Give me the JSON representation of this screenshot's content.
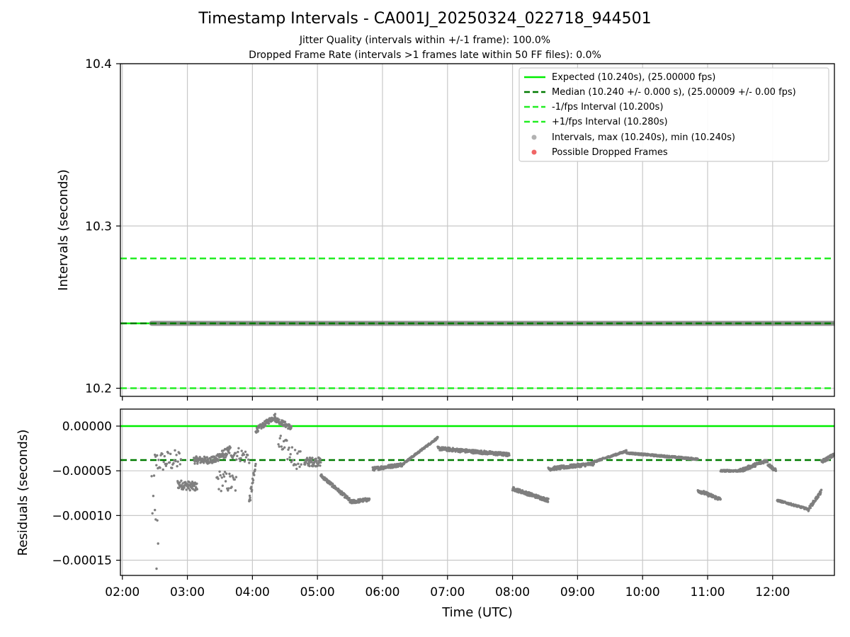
{
  "title": "Timestamp Intervals - CA001J_20250324_022718_944501",
  "subtitle1": "Jitter Quality (intervals within +/-1 frame): 100.0%",
  "subtitle2": "Dropped Frame Rate (intervals >1 frames late within 50 FF files): 0.0%",
  "colors": {
    "expected": "#00ee00",
    "median": "#007a00",
    "bounds": "#22ee22",
    "points": "#7f7f7f",
    "dropped": "#ee5555",
    "grid": "#c8c8c8"
  },
  "legend": [
    {
      "label": "Expected (10.240s), (25.00000 fps)",
      "style": "solid"
    },
    {
      "label": "Median (10.240 +/- 0.000 s), (25.00009 +/- 0.00 fps)",
      "style": "dashed-dark"
    },
    {
      "label": "-1/fps Interval (10.200s)",
      "style": "dashed-light"
    },
    {
      "label": "+1/fps Interval (10.280s)",
      "style": "dashed-light"
    },
    {
      "label": "Intervals, max (10.240s), min (10.240s)",
      "style": "dot-gray"
    },
    {
      "label": "Possible Dropped Frames",
      "style": "dot-red"
    }
  ],
  "chart_data": [
    {
      "type": "line",
      "ylabel": "Intervals (seconds)",
      "ylim": [
        10.195,
        10.4
      ],
      "yticks": [
        10.2,
        10.3,
        10.4
      ],
      "ytick_labels": [
        "10.2",
        "10.3",
        "10.4"
      ],
      "xlim_hours": [
        1.97,
        12.95
      ],
      "grid": true,
      "legend_position": "top-right",
      "expected": 10.24,
      "median": 10.24,
      "lower_bound": 10.2,
      "upper_bound": 10.28,
      "intervals_start_hours": 2.45,
      "intervals_end_hours": 12.95,
      "intervals_value": 10.24
    },
    {
      "type": "scatter",
      "ylabel": "Residuals (seconds)",
      "xlabel": "Time (UTC)",
      "ylim": [
        -0.000167,
        1.9e-05
      ],
      "yticks": [
        0.0,
        -5e-05,
        -0.0001,
        -0.00015
      ],
      "ytick_labels": [
        "0.00000",
        "−0.00005",
        "−0.00010",
        "−0.00015"
      ],
      "xticks": [
        2,
        3,
        4,
        5,
        6,
        7,
        8,
        9,
        10,
        11,
        12
      ],
      "xtick_labels": [
        "02:00",
        "03:00",
        "04:00",
        "05:00",
        "06:00",
        "07:00",
        "08:00",
        "09:00",
        "10:00",
        "11:00",
        "12:00"
      ],
      "xlim_hours": [
        1.97,
        12.95
      ],
      "grid": true,
      "expected_line": 0.0,
      "median_line": -3.8e-05,
      "segments": [
        {
          "x0": 2.45,
          "x1": 2.55,
          "y0": -7e-05,
          "y1": -0.00015,
          "noise": 4.5e-05
        },
        {
          "x0": 2.5,
          "x1": 2.9,
          "y0": -4e-05,
          "y1": -3.8e-05,
          "noise": 1.2e-05
        },
        {
          "x0": 2.85,
          "x1": 3.15,
          "y0": -6.5e-05,
          "y1": -6.8e-05,
          "noise": 5e-06
        },
        {
          "x0": 3.1,
          "x1": 3.45,
          "y0": -3.8e-05,
          "y1": -3.8e-05,
          "noise": 4e-06
        },
        {
          "x0": 3.45,
          "x1": 3.65,
          "y0": -3.5e-05,
          "y1": -2.8e-05,
          "noise": 5e-06
        },
        {
          "x0": 3.45,
          "x1": 3.75,
          "y0": -6e-05,
          "y1": -6.5e-05,
          "noise": 1.2e-05
        },
        {
          "x0": 3.65,
          "x1": 3.95,
          "y0": -2.8e-05,
          "y1": -3.5e-05,
          "noise": 8e-06
        },
        {
          "x0": 3.95,
          "x1": 4.05,
          "y0": -8.5e-05,
          "y1": -4.5e-05,
          "noise": 6e-06
        },
        {
          "x0": 4.05,
          "x1": 4.35,
          "y0": -5e-06,
          "y1": 1.1e-05,
          "noise": 3e-06
        },
        {
          "x0": 4.35,
          "x1": 4.6,
          "y0": 8e-06,
          "y1": -2e-06,
          "noise": 3e-06
        },
        {
          "x0": 4.4,
          "x1": 4.75,
          "y0": -2e-05,
          "y1": -4e-05,
          "noise": 1.2e-05
        },
        {
          "x0": 4.8,
          "x1": 5.05,
          "y0": -4e-05,
          "y1": -4e-05,
          "noise": 5e-06
        },
        {
          "x0": 5.05,
          "x1": 5.5,
          "y0": -5.5e-05,
          "y1": -8.3e-05,
          "noise": 2e-06
        },
        {
          "x0": 5.5,
          "x1": 5.8,
          "y0": -8.5e-05,
          "y1": -8.2e-05,
          "noise": 2e-06
        },
        {
          "x0": 5.85,
          "x1": 6.3,
          "y0": -4.8e-05,
          "y1": -4.3e-05,
          "noise": 2e-06
        },
        {
          "x0": 6.3,
          "x1": 6.85,
          "y0": -4.3e-05,
          "y1": -1.3e-05,
          "noise": 1e-06
        },
        {
          "x0": 6.85,
          "x1": 7.95,
          "y0": -2.5e-05,
          "y1": -3.2e-05,
          "noise": 2e-06
        },
        {
          "x0": 8.0,
          "x1": 8.55,
          "y0": -7e-05,
          "y1": -8.3e-05,
          "noise": 2e-06
        },
        {
          "x0": 8.55,
          "x1": 9.25,
          "y0": -4.8e-05,
          "y1": -4.2e-05,
          "noise": 2e-06
        },
        {
          "x0": 9.25,
          "x1": 9.75,
          "y0": -4e-05,
          "y1": -2.8e-05,
          "noise": 1e-06
        },
        {
          "x0": 9.75,
          "x1": 10.85,
          "y0": -3e-05,
          "y1": -3.7e-05,
          "noise": 1e-06
        },
        {
          "x0": 10.85,
          "x1": 11.2,
          "y0": -7.2e-05,
          "y1": -8.2e-05,
          "noise": 2e-06
        },
        {
          "x0": 11.2,
          "x1": 11.5,
          "y0": -5e-05,
          "y1": -5e-05,
          "noise": 1e-06
        },
        {
          "x0": 11.5,
          "x1": 11.92,
          "y0": -5e-05,
          "y1": -3.8e-05,
          "noise": 2e-06
        },
        {
          "x0": 11.92,
          "x1": 12.05,
          "y0": -4.2e-05,
          "y1": -5e-05,
          "noise": 2e-06
        },
        {
          "x0": 12.07,
          "x1": 12.55,
          "y0": -8.3e-05,
          "y1": -9.3e-05,
          "noise": 1e-06
        },
        {
          "x0": 12.55,
          "x1": 12.75,
          "y0": -9.3e-05,
          "y1": -7.3e-05,
          "noise": 2e-06
        },
        {
          "x0": 12.75,
          "x1": 12.95,
          "y0": -4e-05,
          "y1": -3.2e-05,
          "noise": 2e-06
        }
      ]
    }
  ]
}
